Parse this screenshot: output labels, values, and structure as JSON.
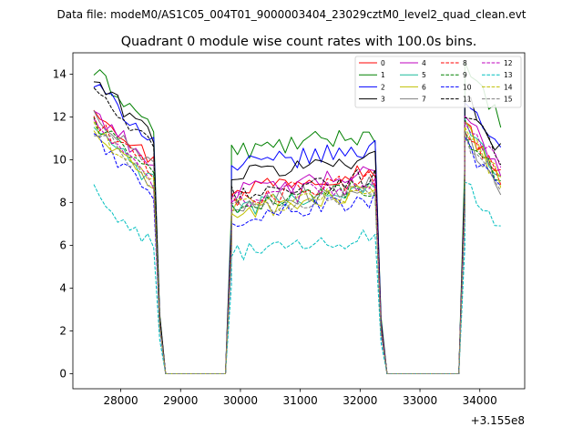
{
  "header": {
    "file_label": "Data file: modeM0/AS1C05_004T01_9000003404_23029cztM0_level2_quad_clean.evt"
  },
  "chart_data": {
    "type": "line",
    "title": "Quadrant 0 module wise count rates with 100.0s bins.",
    "xlabel": "",
    "ylabel": "",
    "x_offset_label": "+3.155e8",
    "xlim": [
      27200,
      34750
    ],
    "ylim": [
      -0.7,
      15.0
    ],
    "x_ticks": [
      28000,
      29000,
      30000,
      31000,
      32000,
      33000,
      34000
    ],
    "y_ticks": [
      0,
      2,
      4,
      6,
      8,
      10,
      12,
      14
    ],
    "x_start": 27550,
    "x_step": 100,
    "legend_position": "top-right",
    "segments": [
      {
        "start": 27550,
        "end": 28550
      },
      {
        "start": 29850,
        "end": 32250
      },
      {
        "start": 33750,
        "end": 34350
      }
    ],
    "gaps": [
      {
        "edge_left": 28650,
        "flat_start": 28750,
        "flat_end": 29750,
        "edge_right": 29850
      },
      {
        "edge_left": 32350,
        "flat_start": 32450,
        "flat_end": 33650,
        "edge_right": 33750
      }
    ],
    "series": [
      {
        "name": "0",
        "color": "#ff0000",
        "dash": "solid",
        "levels": [
          11.2,
          8.9,
          10.2
        ]
      },
      {
        "name": "1",
        "color": "#008000",
        "dash": "solid",
        "levels": [
          12.8,
          10.6,
          12.8
        ]
      },
      {
        "name": "2",
        "color": "#0000ff",
        "dash": "solid",
        "levels": [
          12.2,
          9.9,
          11.6
        ]
      },
      {
        "name": "3",
        "color": "#000000",
        "dash": "solid",
        "levels": [
          12.4,
          9.5,
          11.5
        ]
      },
      {
        "name": "4",
        "color": "#bf00bf",
        "dash": "solid",
        "levels": [
          11.0,
          8.7,
          10.6
        ]
      },
      {
        "name": "5",
        "color": "#1abc9c",
        "dash": "solid",
        "levels": [
          10.2,
          8.0,
          10.3
        ]
      },
      {
        "name": "6",
        "color": "#bfbf00",
        "dash": "solid",
        "levels": [
          10.0,
          7.8,
          10.0
        ]
      },
      {
        "name": "7",
        "color": "#808080",
        "dash": "solid",
        "levels": [
          10.9,
          8.2,
          9.8
        ]
      },
      {
        "name": "8",
        "color": "#ff0000",
        "dash": "dashed",
        "levels": [
          10.6,
          8.4,
          10.0
        ]
      },
      {
        "name": "9",
        "color": "#008000",
        "dash": "dashed",
        "levels": [
          10.5,
          8.1,
          9.9
        ]
      },
      {
        "name": "10",
        "color": "#0000ff",
        "dash": "dashed",
        "levels": [
          9.7,
          7.5,
          9.4
        ]
      },
      {
        "name": "11",
        "color": "#000000",
        "dash": "dashed",
        "levels": [
          11.8,
          8.6,
          11.0
        ]
      },
      {
        "name": "12",
        "color": "#bf00bf",
        "dash": "dashed",
        "levels": [
          10.3,
          8.3,
          10.6
        ]
      },
      {
        "name": "13",
        "color": "#00bfbf",
        "dash": "dashed",
        "levels": [
          7.2,
          5.8,
          7.6
        ]
      },
      {
        "name": "14",
        "color": "#bfbf00",
        "dash": "dashed",
        "levels": [
          10.1,
          8.0,
          10.0
        ]
      },
      {
        "name": "15",
        "color": "#808080",
        "dash": "dashed",
        "levels": [
          10.2,
          7.9,
          9.6
        ]
      }
    ]
  }
}
